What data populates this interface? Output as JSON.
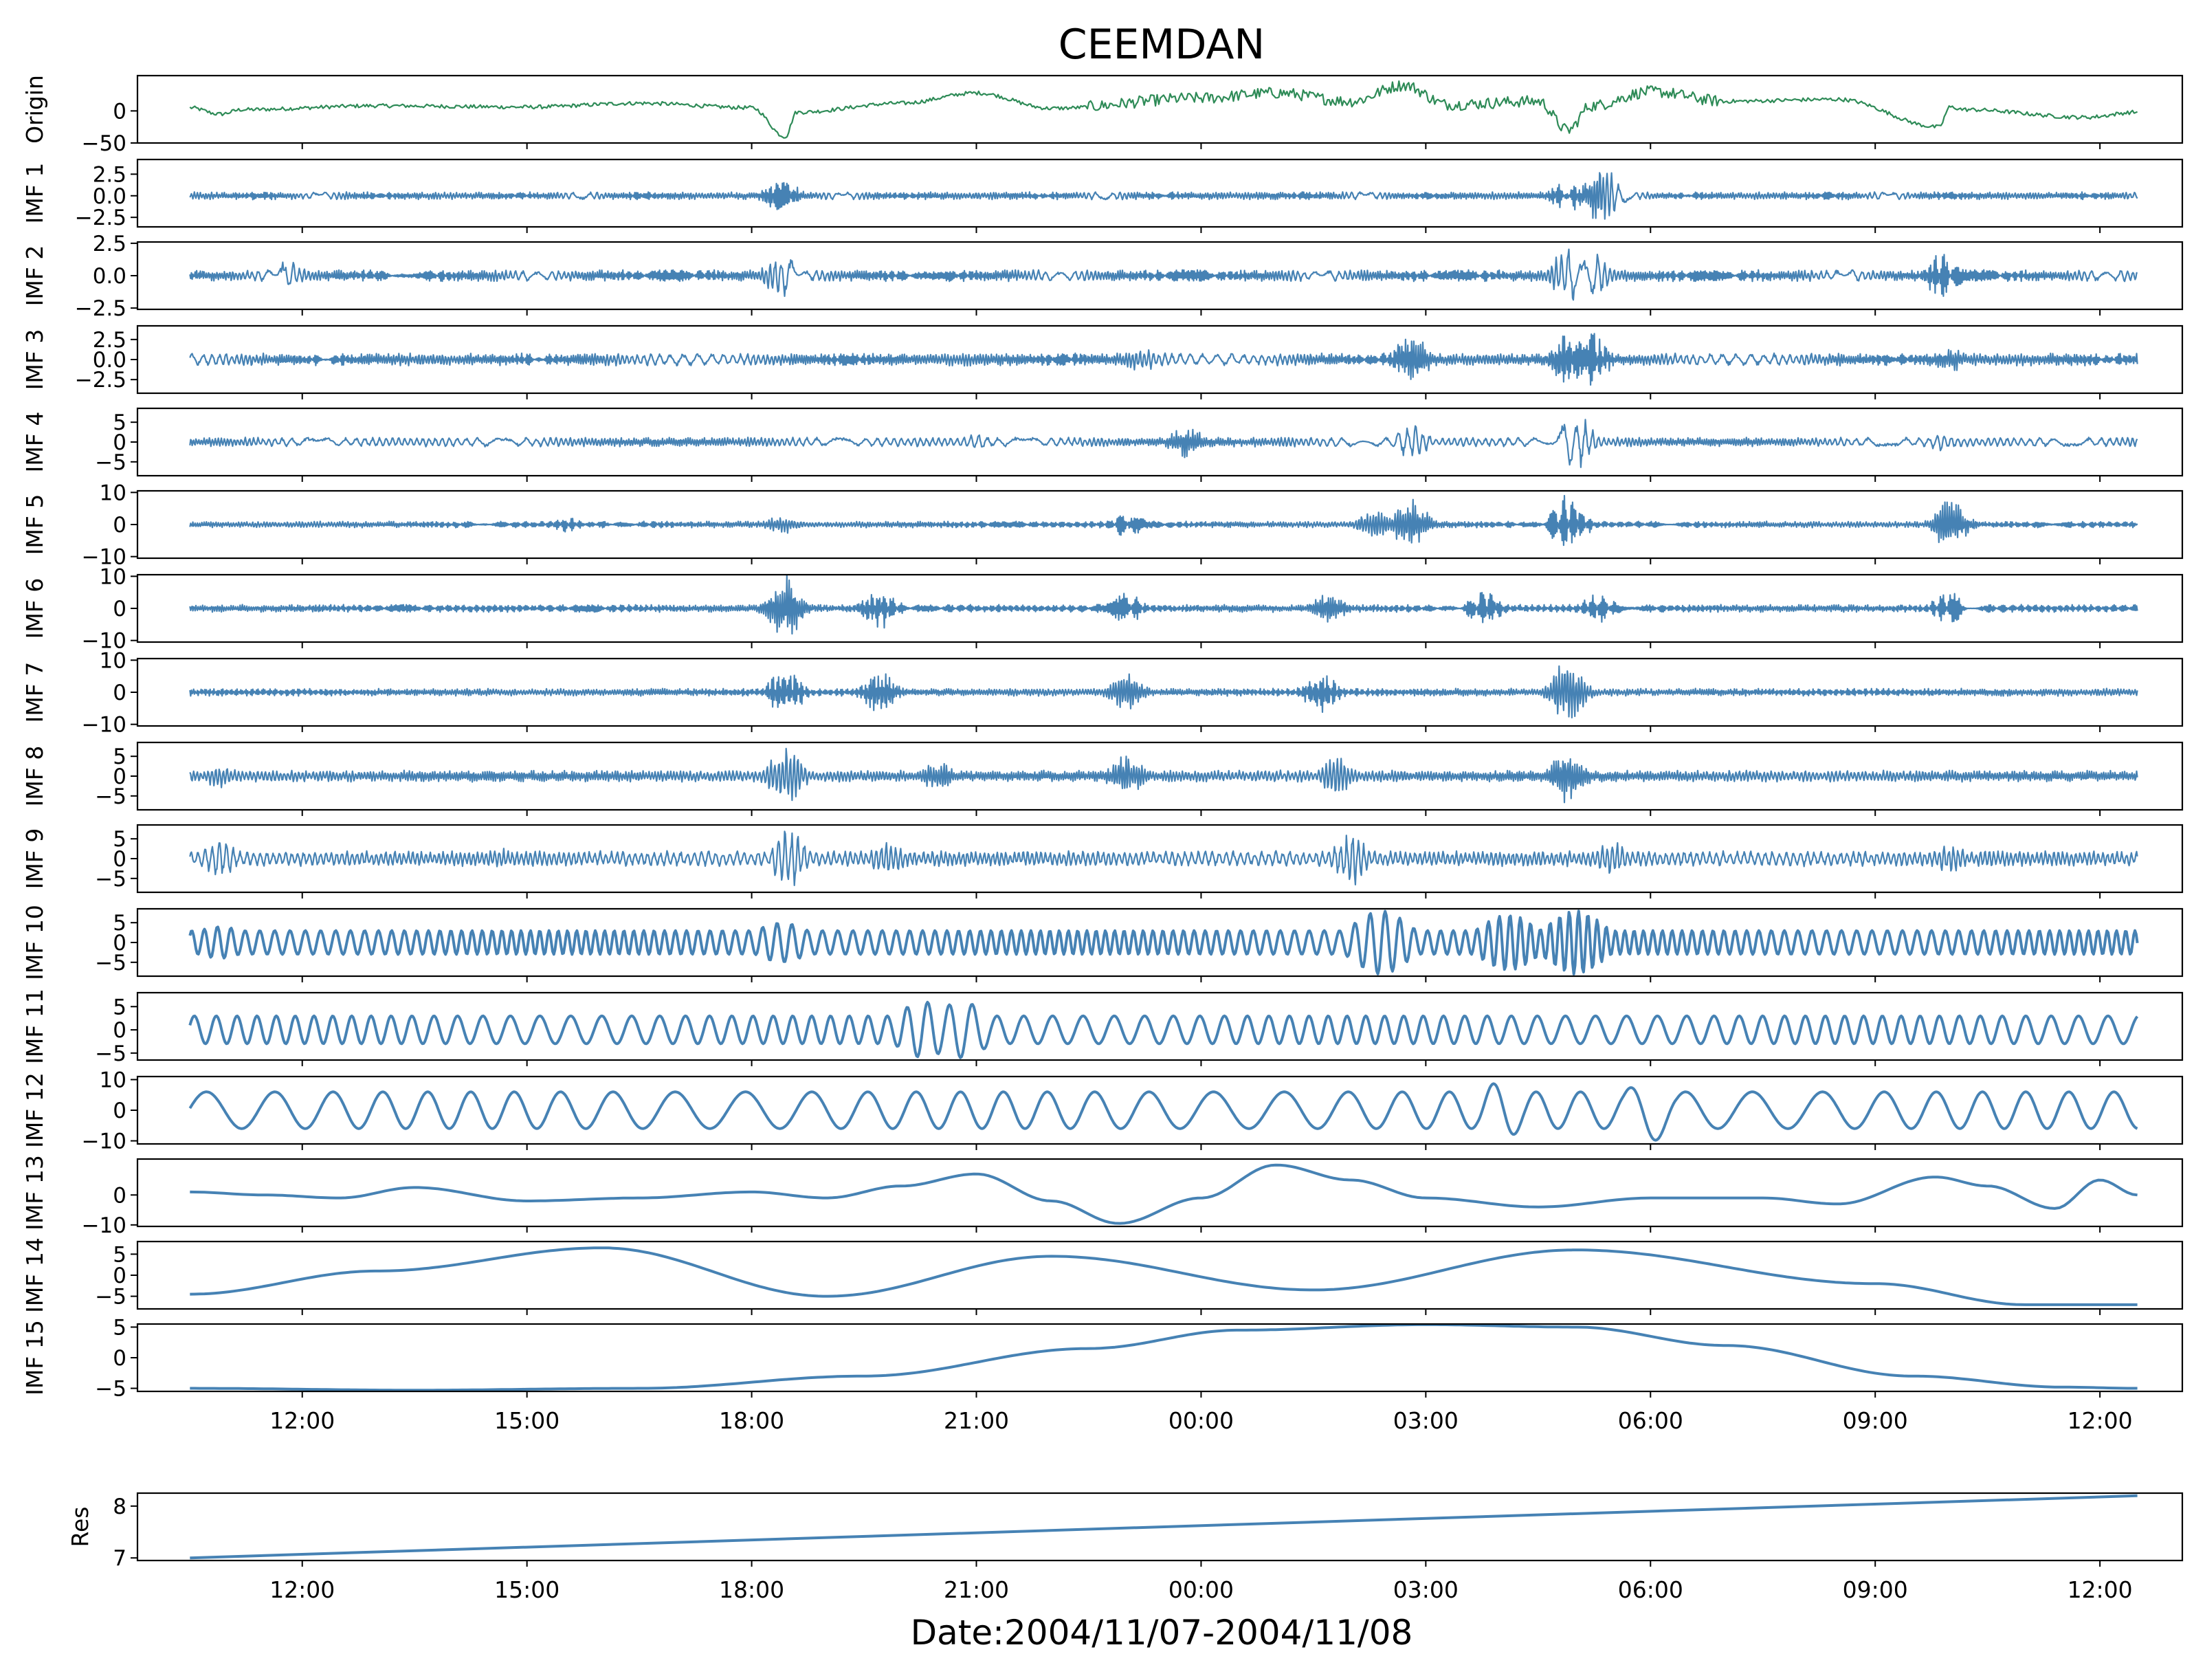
{
  "chart_data": {
    "type": "line",
    "title": "CEEMDAN",
    "xlabel": "Date:2004/11/07-2004/11/08",
    "x_unit": "hours since 2004-11-07 00:00",
    "xlim": [
      9.8,
      37.1
    ],
    "x_range_data": [
      10.5,
      36.5
    ],
    "x_ticks": [
      12,
      15,
      18,
      21,
      24,
      27,
      30,
      33,
      36
    ],
    "x_tick_labels": [
      "12:00",
      "15:00",
      "18:00",
      "21:00",
      "00:00",
      "03:00",
      "06:00",
      "09:00",
      "12:00"
    ],
    "line_colors": {
      "origin": "#2e8b57",
      "imf": "#4682b4"
    },
    "panels": [
      {
        "label": "Origin",
        "ylim": [
          -50,
          55
        ],
        "yticks": [
          0,
          -50
        ],
        "ytick_labels": [
          "0",
          "−50"
        ],
        "kind": "origin"
      },
      {
        "label": "IMF 1",
        "ylim": [
          -3.6,
          4.2
        ],
        "yticks": [
          2.5,
          0,
          -2.5
        ],
        "ytick_labels": [
          "2.5",
          "0.0",
          "−2.5"
        ],
        "kind": "noise",
        "amp": 0.45,
        "freq": 300,
        "events": [
          [
            18.4,
            2.2
          ],
          [
            28.9,
            2.0
          ],
          [
            29.35,
            4.0
          ]
        ]
      },
      {
        "label": "IMF 2",
        "ylim": [
          -2.6,
          2.6
        ],
        "yticks": [
          2.5,
          0,
          -2.5
        ],
        "ytick_labels": [
          "2.5",
          "0.0",
          "−2.5"
        ],
        "kind": "noise",
        "amp": 0.45,
        "freq": 200,
        "events": [
          [
            11.8,
            1.2
          ],
          [
            18.4,
            1.8
          ],
          [
            28.9,
            2.2
          ],
          [
            29.2,
            2.4
          ],
          [
            33.9,
            1.8
          ]
        ]
      },
      {
        "label": "IMF 3",
        "ylim": [
          -4.2,
          4.2
        ],
        "yticks": [
          2.5,
          0,
          -2.5
        ],
        "ytick_labels": [
          "2.5",
          "0.0",
          "−2.5"
        ],
        "kind": "noise",
        "amp": 0.8,
        "freq": 140,
        "events": [
          [
            23.2,
            1.6
          ],
          [
            26.8,
            3.4
          ],
          [
            28.9,
            3.6
          ],
          [
            29.2,
            3.8
          ],
          [
            34.0,
            1.6
          ]
        ]
      },
      {
        "label": "IMF 4",
        "ylim": [
          -8.5,
          8.5
        ],
        "yticks": [
          5,
          0,
          -5
        ],
        "ytick_labels": [
          "5",
          "0",
          "−5"
        ],
        "kind": "noise",
        "amp": 1.2,
        "freq": 90,
        "events": [
          [
            21.0,
            2.2
          ],
          [
            23.8,
            4.0
          ],
          [
            26.8,
            5.0
          ],
          [
            29.0,
            7.5
          ],
          [
            33.9,
            2.5
          ]
        ]
      },
      {
        "label": "IMF 5",
        "ylim": [
          -10.5,
          10.5
        ],
        "yticks": [
          10,
          0,
          -10
        ],
        "ytick_labels": [
          "10",
          "0",
          "−10"
        ],
        "kind": "noise",
        "amp": 1.0,
        "freq": 60,
        "events": [
          [
            15.5,
            2.5
          ],
          [
            18.4,
            3.0
          ],
          [
            23.0,
            4.0
          ],
          [
            26.3,
            5.0
          ],
          [
            26.8,
            9.0
          ],
          [
            28.9,
            9.5
          ],
          [
            34.0,
            8.0
          ]
        ]
      },
      {
        "label": "IMF 6",
        "ylim": [
          -10.5,
          10.5
        ],
        "yticks": [
          10,
          0,
          -10
        ],
        "ytick_labels": [
          "10",
          "0",
          "−10"
        ],
        "kind": "noise",
        "amp": 1.2,
        "freq": 45,
        "events": [
          [
            18.45,
            10.5
          ],
          [
            19.7,
            7.0
          ],
          [
            23.0,
            5.0
          ],
          [
            25.7,
            5.0
          ],
          [
            27.8,
            6.0
          ],
          [
            29.3,
            5.0
          ],
          [
            34.0,
            6.0
          ]
        ]
      },
      {
        "label": "IMF 7",
        "ylim": [
          -10.5,
          10.5
        ],
        "yticks": [
          10,
          0,
          -10
        ],
        "ytick_labels": [
          "10",
          "0",
          "−10"
        ],
        "kind": "noise",
        "amp": 1.2,
        "freq": 35,
        "events": [
          [
            18.45,
            8.0
          ],
          [
            19.7,
            7.0
          ],
          [
            23.0,
            6.0
          ],
          [
            25.6,
            7.0
          ],
          [
            28.9,
            10.5
          ]
        ]
      },
      {
        "label": "IMF 8",
        "ylim": [
          -8.5,
          8.5
        ],
        "yticks": [
          5,
          0,
          -5
        ],
        "ytick_labels": [
          "5",
          "0",
          "−5"
        ],
        "kind": "noise",
        "amp": 1.5,
        "freq": 26,
        "events": [
          [
            10.9,
            3.0
          ],
          [
            18.45,
            8.0
          ],
          [
            20.5,
            4.0
          ],
          [
            23.0,
            6.0
          ],
          [
            25.8,
            5.0
          ],
          [
            28.9,
            7.0
          ],
          [
            33.9,
            1.5
          ]
        ]
      },
      {
        "label": "IMF 9",
        "ylim": [
          -8.5,
          8.5
        ],
        "yticks": [
          5,
          0,
          -5
        ],
        "ytick_labels": [
          "5",
          "0",
          "−5"
        ],
        "kind": "noise",
        "amp": 2.0,
        "freq": 14,
        "events": [
          [
            10.9,
            5.0
          ],
          [
            14.6,
            3.0
          ],
          [
            18.5,
            8.0
          ],
          [
            19.8,
            5.0
          ],
          [
            26.0,
            7.0
          ],
          [
            29.5,
            5.0
          ],
          [
            34.0,
            4.0
          ]
        ]
      },
      {
        "label": "IMF 10",
        "ylim": [
          -8.5,
          8.5
        ],
        "yticks": [
          5,
          0,
          -5
        ],
        "ytick_labels": [
          "5",
          "0",
          "−5"
        ],
        "kind": "osc",
        "amp": 3.0,
        "freq": 6.5,
        "events": [
          [
            10.9,
            4.0
          ],
          [
            18.4,
            5.0
          ],
          [
            26.4,
            8.0
          ],
          [
            28.1,
            7.0
          ],
          [
            29.0,
            8.0
          ]
        ]
      },
      {
        "label": "IMF 11",
        "ylim": [
          -6.5,
          8.0
        ],
        "yticks": [
          5,
          0,
          -5
        ],
        "ytick_labels": [
          "5",
          "0",
          "−5"
        ],
        "kind": "osc",
        "amp": 3.0,
        "freq": 3.2,
        "events": [
          [
            20.3,
            6.0
          ],
          [
            20.8,
            6.0
          ]
        ]
      },
      {
        "label": "IMF 12",
        "ylim": [
          -11,
          11
        ],
        "yticks": [
          10,
          0,
          -10
        ],
        "ytick_labels": [
          "10",
          "0",
          "−10"
        ],
        "kind": "osc",
        "amp": 6.0,
        "freq": 1.4,
        "events": [
          [
            28.0,
            9.0
          ],
          [
            30.0,
            10.0
          ]
        ]
      },
      {
        "label": "IMF 13",
        "ylim": [
          -10.5,
          12
        ],
        "yticks": [
          0,
          -10
        ],
        "ytick_labels": [
          "0",
          "−10"
        ],
        "kind": "low",
        "points": [
          [
            10.5,
            1.0
          ],
          [
            11.5,
            0.0
          ],
          [
            12.5,
            -1.0
          ],
          [
            13.5,
            2.5
          ],
          [
            15.0,
            -2.0
          ],
          [
            16.5,
            -1.0
          ],
          [
            18.0,
            1.0
          ],
          [
            19.0,
            -1.0
          ],
          [
            20.0,
            3.0
          ],
          [
            21.0,
            7.0
          ],
          [
            22.0,
            -2.0
          ],
          [
            22.9,
            -9.5
          ],
          [
            24.0,
            -1.0
          ],
          [
            25.0,
            10.0
          ],
          [
            26.0,
            5.0
          ],
          [
            27.0,
            -1.0
          ],
          [
            28.5,
            -4.0
          ],
          [
            30.0,
            -1.0
          ],
          [
            31.5,
            -1.0
          ],
          [
            32.5,
            -3.0
          ],
          [
            33.8,
            6.0
          ],
          [
            34.5,
            3.0
          ],
          [
            35.4,
            -4.5
          ],
          [
            36.0,
            5.0
          ],
          [
            36.5,
            0.0
          ]
        ]
      },
      {
        "label": "IMF 14",
        "ylim": [
          -8.0,
          8.0
        ],
        "yticks": [
          5,
          0,
          -5
        ],
        "ytick_labels": [
          "5",
          "0",
          "−5"
        ],
        "kind": "low",
        "points": [
          [
            10.5,
            -4.5
          ],
          [
            13.0,
            1.0
          ],
          [
            16.0,
            6.5
          ],
          [
            19.0,
            -5.0
          ],
          [
            22.0,
            4.5
          ],
          [
            25.5,
            -3.5
          ],
          [
            29.0,
            6.0
          ],
          [
            33.0,
            -2.0
          ],
          [
            35.0,
            -7.0
          ],
          [
            36.5,
            -7.0
          ]
        ]
      },
      {
        "label": "IMF 15",
        "ylim": [
          -5.5,
          5.5
        ],
        "yticks": [
          5,
          0,
          -5
        ],
        "ytick_labels": [
          "5",
          "0",
          "−5"
        ],
        "kind": "low",
        "points": [
          [
            10.5,
            -5.0
          ],
          [
            13.5,
            -5.3
          ],
          [
            16.5,
            -5.0
          ],
          [
            19.5,
            -3.0
          ],
          [
            22.5,
            1.5
          ],
          [
            24.5,
            4.5
          ],
          [
            27.0,
            5.4
          ],
          [
            29.0,
            5.0
          ],
          [
            31.0,
            2.0
          ],
          [
            33.5,
            -3.0
          ],
          [
            35.5,
            -4.8
          ],
          [
            36.5,
            -5.0
          ]
        ]
      },
      {
        "label": "Res",
        "ylim": [
          6.95,
          8.25
        ],
        "yticks": [
          8,
          7
        ],
        "ytick_labels": [
          "8",
          "7"
        ],
        "kind": "line",
        "points": [
          [
            10.5,
            7.0
          ],
          [
            36.5,
            8.2
          ]
        ]
      }
    ]
  }
}
